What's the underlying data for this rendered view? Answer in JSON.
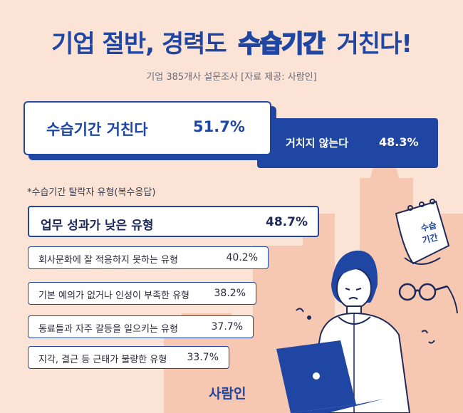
{
  "header": {
    "title_pre": "기업 절반, 경력도 ",
    "title_highlight": "수습기간",
    "title_post": " 거친다!",
    "subtitle": "기업 385개사 설문조사 [자료 제공: 사람인]"
  },
  "types_label": "*수습기간 탈락자 유형(복수응답)",
  "calendar_text": [
    "수습",
    "기간"
  ],
  "brand": "사람인",
  "colors": {
    "accent": "#1e46a2",
    "background": "#fbe3d6",
    "building": "#f6c8b1"
  },
  "chart_data": [
    {
      "type": "bar",
      "categories": [
        "수습기간 거친다",
        "거치지 않는다"
      ],
      "values": [
        51.7,
        48.3
      ],
      "value_labels": [
        "51.7%",
        "48.3%"
      ]
    },
    {
      "type": "bar",
      "categories": [
        "업무 성과가 낮은 유형",
        "회사문화에 잘 적응하지 못하는 유형",
        "기본 예의가 없거나 인성이 부족한 유형",
        "동료들과 자주 갈등을 일으키는 유형",
        "지각, 결근 등 근태가 불량한 유형"
      ],
      "values": [
        48.7,
        40.2,
        38.2,
        37.7,
        33.7
      ],
      "value_labels": [
        "48.7%",
        "40.2%",
        "38.2%",
        "37.7%",
        "33.7%"
      ]
    }
  ]
}
